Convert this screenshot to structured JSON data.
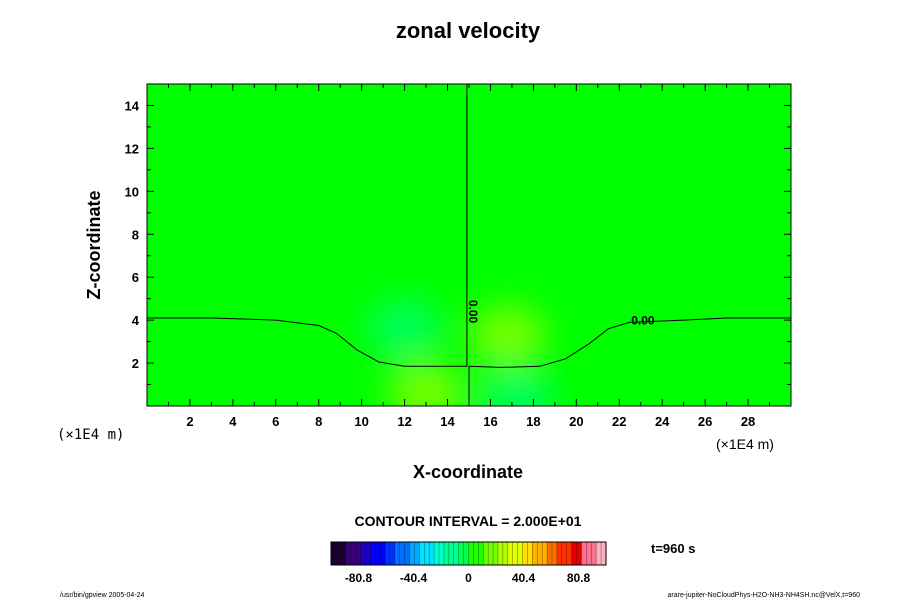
{
  "chart_data": {
    "type": "heatmap",
    "title": "zonal velocity",
    "xlabel": "X-coordinate",
    "ylabel": "Z-coordinate",
    "x_unit": "(×1E4 m)",
    "z_unit": "(×1E4 m)",
    "xlim": [
      0,
      30
    ],
    "ylim": [
      0,
      15
    ],
    "x_ticks": [
      2,
      4,
      6,
      8,
      10,
      12,
      14,
      16,
      18,
      20,
      22,
      24,
      26,
      28
    ],
    "y_ticks": [
      2,
      4,
      6,
      8,
      10,
      12,
      14
    ],
    "background_color": "#00ff00",
    "anomalies": [
      {
        "x": 12,
        "z": 3.6,
        "sign": "negative",
        "color": "#00ff66"
      },
      {
        "x": 13,
        "z": 0.6,
        "sign": "positive",
        "color": "#88ff00"
      },
      {
        "x": 16.8,
        "z": 3.3,
        "sign": "positive",
        "color": "#88ff00"
      },
      {
        "x": 17.2,
        "z": 0.4,
        "sign": "negative",
        "color": "#00ff66"
      }
    ],
    "contours": [
      {
        "level": "0.00",
        "path": [
          [
            0,
            4.1
          ],
          [
            3,
            4.1
          ],
          [
            6,
            4.0
          ],
          [
            8,
            3.75
          ],
          [
            8.8,
            3.4
          ],
          [
            9.8,
            2.6
          ],
          [
            10.8,
            2.05
          ],
          [
            12,
            1.85
          ],
          [
            14.9,
            1.85
          ],
          [
            14.9,
            15
          ]
        ]
      },
      {
        "level": "0.00",
        "path": [
          [
            15,
            0
          ],
          [
            15,
            1.85
          ],
          [
            16.5,
            1.8
          ],
          [
            18.3,
            1.85
          ],
          [
            19.5,
            2.2
          ],
          [
            20.6,
            2.9
          ],
          [
            21.5,
            3.6
          ],
          [
            22.5,
            3.9
          ],
          [
            25,
            4.0
          ],
          [
            27,
            4.1
          ],
          [
            30,
            4.1
          ]
        ]
      }
    ],
    "contour_labels": [
      {
        "text": "0.00",
        "x": 15.0,
        "z": 4.4,
        "rotate": 90
      },
      {
        "text": "0.00",
        "x": 23.1,
        "z": 3.8,
        "rotate": 0
      }
    ],
    "contour_interval_text": "CONTOUR INTERVAL = 2.000E+01",
    "colorbar": {
      "range": [
        -101,
        101
      ],
      "tick_labels": [
        "-80.8",
        "-40.4",
        "0",
        "40.4",
        "80.8"
      ],
      "tick_values": [
        -80.8,
        -40.4,
        0,
        40.4,
        80.8
      ],
      "colors": [
        "#1a0030",
        "#3a007a",
        "#2000c0",
        "#0000ff",
        "#0030ff",
        "#0070ff",
        "#00a8ff",
        "#00e0ff",
        "#00ffd0",
        "#00ff90",
        "#00ff50",
        "#20ff00",
        "#70ff00",
        "#b0ff00",
        "#e0ff00",
        "#ffe000",
        "#ffb000",
        "#ff7000",
        "#ff3000",
        "#e00000",
        "#ff7090",
        "#ffb0c0"
      ]
    },
    "time_text": "t=960 s"
  },
  "footer": {
    "left": "/usr/bin/gpview 2005-04-24",
    "right": "arare-jupiter-NoCloudPhys-H2O-NH3-NH4SH.nc@VelX,t=960"
  }
}
